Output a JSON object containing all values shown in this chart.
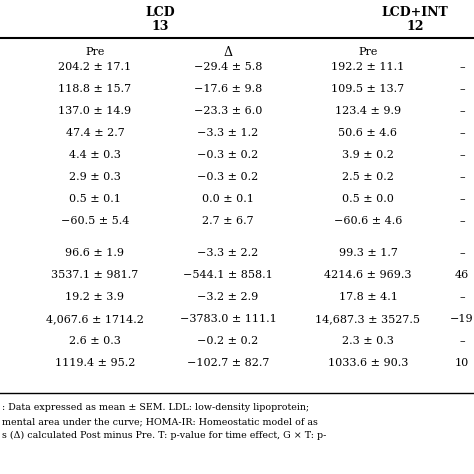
{
  "lcd_header": "LCD",
  "lcd_n": "13",
  "lcdint_header": "LCD+INT",
  "lcdint_n": "12",
  "col_headers": [
    "Pre",
    "Δ",
    "Pre",
    ""
  ],
  "rows": [
    [
      "204.2 ± 17.1",
      "−29.4 ± 5.8",
      "192.2 ± 11.1",
      "–"
    ],
    [
      "118.8 ± 15.7",
      "−17.6 ± 9.8",
      "109.5 ± 13.7",
      "–"
    ],
    [
      "137.0 ± 14.9",
      "−23.3 ± 6.0",
      "123.4 ± 9.9",
      "–"
    ],
    [
      "47.4 ± 2.7",
      "−3.3 ± 1.2",
      "50.6 ± 4.6",
      "–"
    ],
    [
      "4.4 ± 0.3",
      "−0.3 ± 0.2",
      "3.9 ± 0.2",
      "–"
    ],
    [
      "2.9 ± 0.3",
      "−0.3 ± 0.2",
      "2.5 ± 0.2",
      "–"
    ],
    [
      "0.5 ± 0.1",
      "0.0 ± 0.1",
      "0.5 ± 0.0",
      "–"
    ],
    [
      "−60.5 ± 5.4",
      "2.7 ± 6.7",
      "−60.6 ± 4.6",
      "–"
    ],
    [
      "",
      "",
      "",
      ""
    ],
    [
      "96.6 ± 1.9",
      "−3.3 ± 2.2",
      "99.3 ± 1.7",
      "–"
    ],
    [
      "3537.1 ± 981.7",
      "−544.1 ± 858.1",
      "4214.6 ± 969.3",
      "46"
    ],
    [
      "19.2 ± 3.9",
      "−3.2 ± 2.9",
      "17.8 ± 4.1",
      "–"
    ],
    [
      "4,067.6 ± 1714.2",
      "−3783.0 ± 111.1",
      "14,687.3 ± 3527.5",
      "−19"
    ],
    [
      "2.6 ± 0.3",
      "−0.2 ± 0.2",
      "2.3 ± 0.3",
      "–"
    ],
    [
      "1119.4 ± 95.2",
      "−102.7 ± 82.7",
      "1033.6 ± 90.3",
      "10"
    ]
  ],
  "footnote_lines": [
    ": Data expressed as mean ± SEM. LDL: low-density lipoprotein;",
    "mental area under the curve; HOMA-IR: Homeostatic model of as",
    "s (Δ) calculated Post minus Pre. T: p-value for time effect, G × T: p-"
  ],
  "bg_color": "#ffffff",
  "text_color": "#000000",
  "font_size": 8.0,
  "header_font_size": 9.0,
  "footnote_font_size": 6.8
}
